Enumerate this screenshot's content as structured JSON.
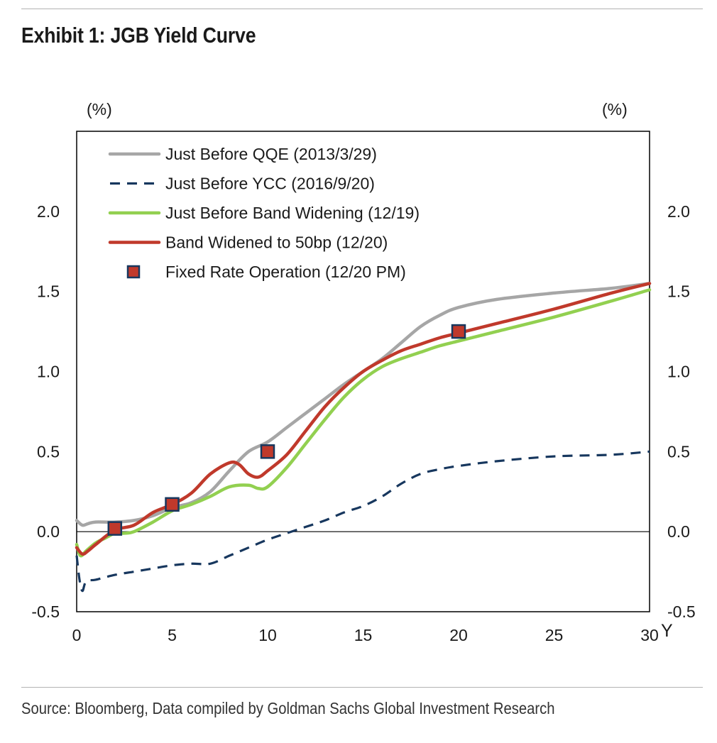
{
  "header": {
    "title": "Exhibit 1: JGB Yield Curve"
  },
  "footer": {
    "source": "Source: Bloomberg, Data compiled by Goldman Sachs Global Investment Research"
  },
  "chart_data": {
    "type": "line",
    "title": "Exhibit 1: JGB Yield Curve",
    "ylabel_left": "(%)",
    "ylabel_right": "(%)",
    "xlabel": "Y",
    "xlim": [
      0,
      30
    ],
    "ylim": [
      -0.5,
      2.5
    ],
    "x_ticks": [
      0,
      5,
      10,
      15,
      20,
      25,
      30
    ],
    "y_ticks": [
      -0.5,
      0.0,
      0.5,
      1.0,
      1.5,
      2.0
    ],
    "y_tick_labels": [
      "-0.5",
      "0.0",
      "0.5",
      "1.0",
      "1.5",
      "2.0"
    ],
    "grid": false,
    "zero_line": true,
    "legend_position": "top-left",
    "series": [
      {
        "name": "Just Before QQE (2013/3/29)",
        "color": "#a6a6a6",
        "style": "solid",
        "x": [
          0,
          0.3,
          0.6,
          1,
          2,
          3,
          4,
          5,
          6,
          7,
          8,
          9,
          10,
          11,
          12,
          13,
          14,
          15,
          16,
          17,
          18,
          19,
          20,
          22,
          25,
          28,
          30
        ],
        "y": [
          0.07,
          0.04,
          0.05,
          0.06,
          0.06,
          0.07,
          0.1,
          0.15,
          0.18,
          0.25,
          0.38,
          0.5,
          0.56,
          0.65,
          0.74,
          0.83,
          0.92,
          1.0,
          1.08,
          1.18,
          1.28,
          1.35,
          1.4,
          1.45,
          1.49,
          1.52,
          1.55
        ]
      },
      {
        "name": "Just Before YCC (2016/9/20)",
        "color": "#17375e",
        "style": "dashed",
        "x": [
          0,
          0.15,
          0.3,
          0.5,
          1,
          2,
          3,
          4,
          5,
          6,
          7,
          8,
          9,
          10,
          11,
          12,
          13,
          14,
          15,
          16,
          17,
          18,
          19,
          20,
          22,
          25,
          28,
          30
        ],
        "y": [
          -0.15,
          -0.3,
          -0.37,
          -0.31,
          -0.3,
          -0.27,
          -0.25,
          -0.23,
          -0.21,
          -0.2,
          -0.2,
          -0.15,
          -0.1,
          -0.05,
          -0.01,
          0.03,
          0.07,
          0.12,
          0.16,
          0.22,
          0.3,
          0.36,
          0.39,
          0.41,
          0.44,
          0.47,
          0.48,
          0.5
        ]
      },
      {
        "name": "Just Before Band Widening (12/19)",
        "color": "#92d050",
        "style": "solid",
        "x": [
          0,
          0.2,
          0.5,
          1,
          1.5,
          2,
          2.5,
          3,
          4,
          5,
          6,
          7,
          8,
          9,
          9.5,
          10,
          11,
          12,
          13,
          14,
          15,
          16,
          17,
          18,
          19,
          20,
          22,
          25,
          28,
          30
        ],
        "y": [
          -0.08,
          -0.15,
          -0.12,
          -0.07,
          -0.04,
          -0.01,
          -0.01,
          0.0,
          0.06,
          0.13,
          0.17,
          0.22,
          0.28,
          0.29,
          0.27,
          0.28,
          0.4,
          0.55,
          0.7,
          0.84,
          0.95,
          1.03,
          1.08,
          1.12,
          1.16,
          1.19,
          1.25,
          1.34,
          1.44,
          1.51
        ]
      },
      {
        "name": "Band Widened to 50bp (12/20)",
        "color": "#c0392b",
        "style": "solid",
        "x": [
          0,
          0.3,
          0.6,
          1,
          2,
          3,
          4,
          5,
          6,
          7,
          8,
          8.5,
          9,
          9.5,
          10,
          11,
          12,
          13,
          14,
          15,
          16,
          17,
          18,
          19,
          20,
          22,
          25,
          28,
          30
        ],
        "y": [
          -0.1,
          -0.14,
          -0.12,
          -0.08,
          0.01,
          0.04,
          0.12,
          0.17,
          0.24,
          0.36,
          0.43,
          0.42,
          0.36,
          0.34,
          0.38,
          0.48,
          0.63,
          0.78,
          0.9,
          1.0,
          1.07,
          1.13,
          1.17,
          1.21,
          1.24,
          1.3,
          1.39,
          1.49,
          1.55
        ]
      },
      {
        "name": "Fixed Rate Operation (12/20 PM)",
        "color": "#c0392b",
        "marker_edge": "#17375e",
        "style": "marker",
        "x": [
          2,
          5,
          10,
          20
        ],
        "y": [
          0.02,
          0.17,
          0.5,
          1.25
        ]
      }
    ]
  }
}
